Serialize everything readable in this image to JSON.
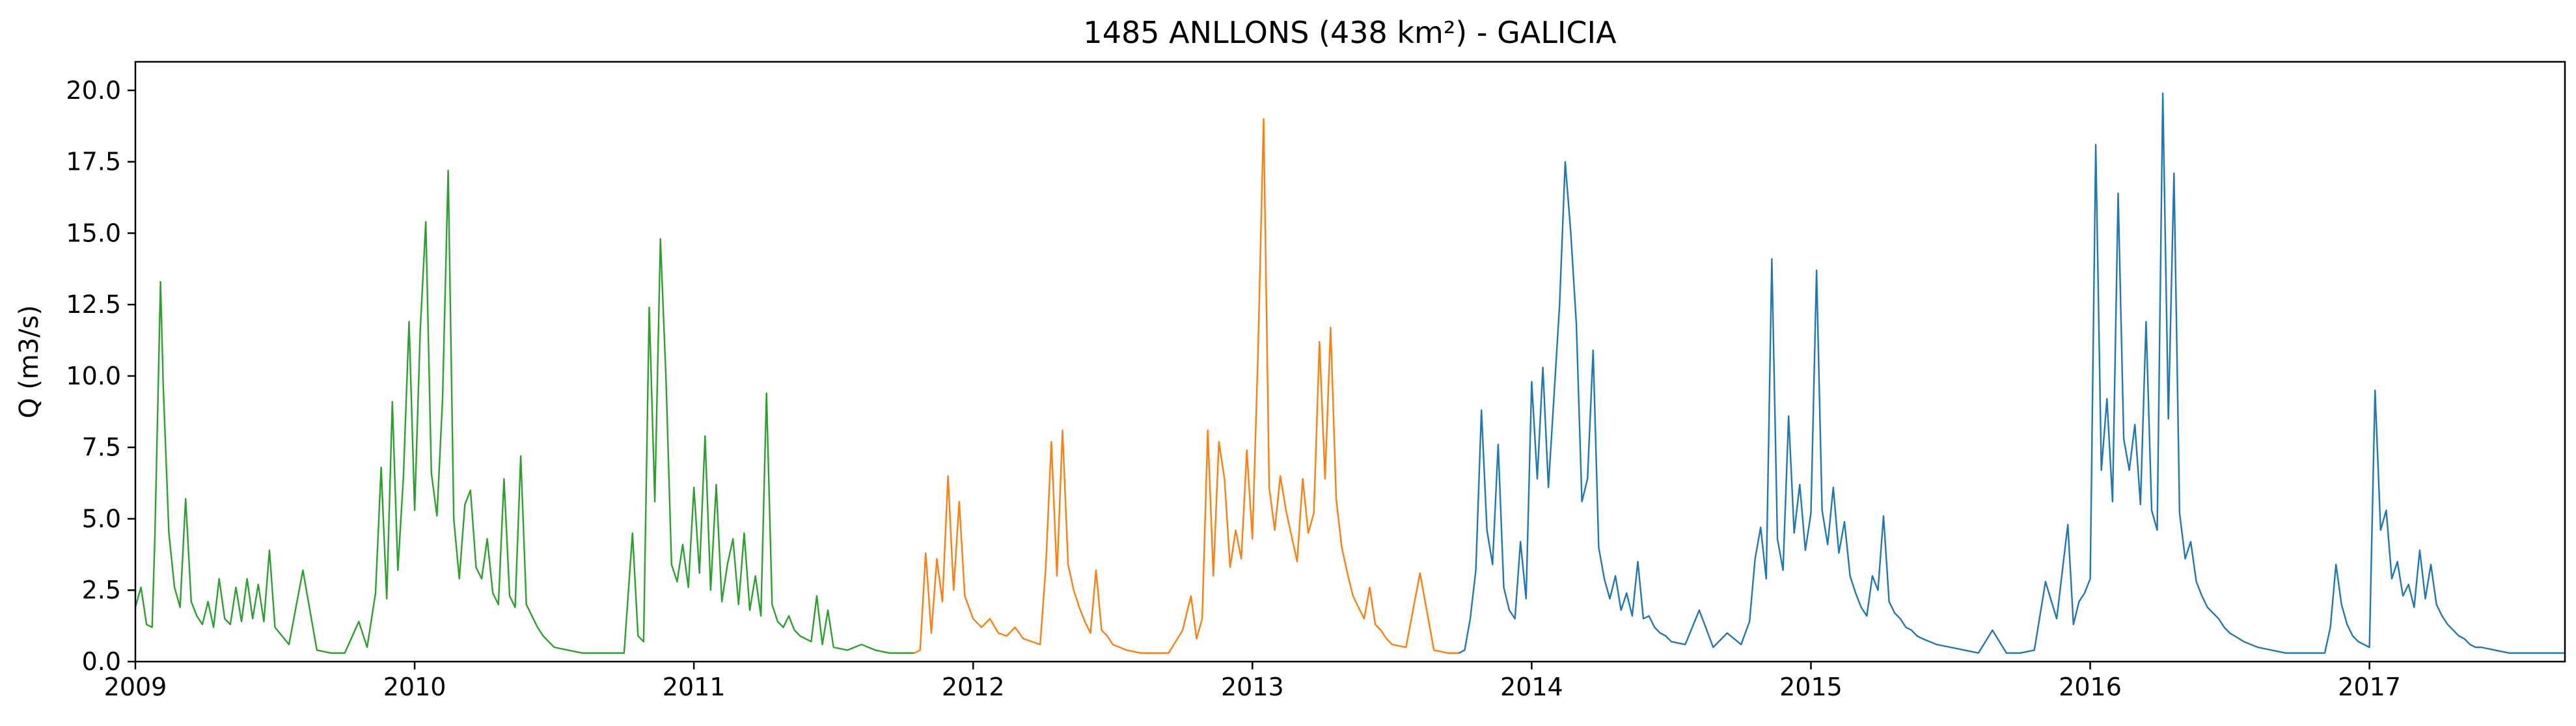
{
  "chart_data": {
    "type": "line",
    "title": "1485 ANLLONS (438 km²) - GALICIA",
    "xlabel": "",
    "ylabel": "Q (m3/s)",
    "xlim": [
      2009.0,
      2017.7
    ],
    "ylim": [
      0.0,
      21.0
    ],
    "grid": false,
    "x_ticks": [
      "2009",
      "2010",
      "2011",
      "2012",
      "2013",
      "2014",
      "2015",
      "2016",
      "2017"
    ],
    "y_ticks": [
      "0.0",
      "2.5",
      "5.0",
      "7.5",
      "10.0",
      "12.5",
      "15.0",
      "17.5",
      "20.0"
    ],
    "series": [
      {
        "color": "#2ca02c",
        "x": [
          2009.0,
          2009.02,
          2009.04,
          2009.06,
          2009.07,
          2009.08,
          2009.09,
          2009.1,
          2009.12,
          2009.14,
          2009.16,
          2009.18,
          2009.2,
          2009.22,
          2009.24,
          2009.26,
          2009.28,
          2009.3,
          2009.32,
          2009.34,
          2009.36,
          2009.38,
          2009.4,
          2009.42,
          2009.44,
          2009.46,
          2009.48,
          2009.5,
          2009.55,
          2009.6,
          2009.65,
          2009.7,
          2009.75,
          2009.8,
          2009.83,
          2009.86,
          2009.88,
          2009.9,
          2009.92,
          2009.94,
          2009.96,
          2009.98,
          2010.0,
          2010.02,
          2010.04,
          2010.06,
          2010.08,
          2010.1,
          2010.12,
          2010.14,
          2010.16,
          2010.18,
          2010.2,
          2010.22,
          2010.24,
          2010.26,
          2010.28,
          2010.3,
          2010.32,
          2010.34,
          2010.36,
          2010.38,
          2010.4,
          2010.42,
          2010.44,
          2010.46,
          2010.48,
          2010.5,
          2010.55,
          2010.6,
          2010.65,
          2010.7,
          2010.75,
          2010.78,
          2010.8,
          2010.82,
          2010.84,
          2010.86,
          2010.88,
          2010.9,
          2010.92,
          2010.94,
          2010.96,
          2010.98,
          2011.0,
          2011.02,
          2011.04,
          2011.06,
          2011.08,
          2011.1,
          2011.12,
          2011.14,
          2011.16,
          2011.18,
          2011.2,
          2011.22,
          2011.24,
          2011.26,
          2011.28,
          2011.3,
          2011.32,
          2011.34,
          2011.36,
          2011.38,
          2011.4,
          2011.42,
          2011.44,
          2011.46,
          2011.48,
          2011.5,
          2011.55,
          2011.6,
          2011.65,
          2011.7,
          2011.75,
          2011.79
        ],
        "y": [
          1.9,
          2.6,
          1.3,
          1.2,
          4.4,
          8.8,
          13.3,
          9.6,
          4.5,
          2.6,
          1.9,
          5.7,
          2.1,
          1.6,
          1.3,
          2.1,
          1.2,
          2.9,
          1.5,
          1.3,
          2.6,
          1.4,
          2.9,
          1.5,
          2.7,
          1.4,
          3.9,
          1.2,
          0.6,
          3.2,
          0.4,
          0.3,
          0.3,
          1.4,
          0.5,
          2.4,
          6.8,
          2.2,
          9.1,
          3.2,
          6.5,
          11.9,
          5.3,
          11.6,
          15.4,
          6.6,
          5.1,
          9.2,
          17.2,
          5.0,
          2.9,
          5.5,
          6.0,
          3.3,
          2.9,
          4.3,
          2.4,
          2.0,
          6.4,
          2.3,
          1.9,
          7.2,
          2.0,
          1.6,
          1.2,
          0.9,
          0.7,
          0.5,
          0.4,
          0.3,
          0.3,
          0.3,
          0.3,
          4.5,
          0.9,
          0.7,
          12.4,
          5.6,
          14.8,
          9.9,
          3.4,
          2.8,
          4.1,
          2.6,
          6.1,
          3.1,
          7.9,
          2.5,
          6.2,
          2.1,
          3.4,
          4.3,
          2.0,
          4.5,
          1.8,
          3.0,
          1.6,
          9.4,
          2.0,
          1.4,
          1.2,
          1.6,
          1.1,
          0.9,
          0.8,
          0.7,
          2.3,
          0.6,
          1.8,
          0.5,
          0.4,
          0.6,
          0.4,
          0.3,
          0.3,
          0.3
        ]
      },
      {
        "color": "#ff7f0e",
        "x": [
          2011.79,
          2011.81,
          2011.83,
          2011.85,
          2011.87,
          2011.89,
          2011.91,
          2011.93,
          2011.95,
          2011.97,
          2012.0,
          2012.03,
          2012.06,
          2012.09,
          2012.12,
          2012.15,
          2012.18,
          2012.21,
          2012.24,
          2012.26,
          2012.28,
          2012.3,
          2012.32,
          2012.34,
          2012.36,
          2012.38,
          2012.4,
          2012.42,
          2012.44,
          2012.46,
          2012.48,
          2012.5,
          2012.55,
          2012.6,
          2012.65,
          2012.7,
          2012.75,
          2012.78,
          2012.8,
          2012.82,
          2012.84,
          2012.86,
          2012.88,
          2012.9,
          2012.92,
          2012.94,
          2012.96,
          2012.98,
          2013.0,
          2013.02,
          2013.04,
          2013.06,
          2013.08,
          2013.1,
          2013.12,
          2013.14,
          2013.16,
          2013.18,
          2013.2,
          2013.22,
          2013.24,
          2013.26,
          2013.28,
          2013.3,
          2013.32,
          2013.34,
          2013.36,
          2013.38,
          2013.4,
          2013.42,
          2013.44,
          2013.46,
          2013.48,
          2013.5,
          2013.55,
          2013.6,
          2013.65,
          2013.7,
          2013.74
        ],
        "y": [
          0.3,
          0.4,
          3.8,
          1.0,
          3.6,
          2.1,
          6.5,
          2.5,
          5.6,
          2.3,
          1.5,
          1.2,
          1.5,
          1.0,
          0.9,
          1.2,
          0.8,
          0.7,
          0.6,
          3.3,
          7.7,
          3.0,
          8.1,
          3.4,
          2.5,
          1.9,
          1.4,
          1.0,
          3.2,
          1.1,
          0.9,
          0.6,
          0.4,
          0.3,
          0.3,
          0.3,
          1.1,
          2.3,
          0.8,
          1.5,
          8.1,
          3.0,
          7.7,
          6.4,
          3.3,
          4.6,
          3.6,
          7.4,
          4.3,
          10.8,
          19.0,
          6.1,
          4.6,
          6.5,
          5.3,
          4.4,
          3.5,
          6.4,
          4.5,
          5.2,
          11.2,
          6.4,
          11.7,
          5.7,
          4.0,
          3.1,
          2.3,
          1.9,
          1.5,
          2.6,
          1.3,
          1.1,
          0.8,
          0.6,
          0.5,
          3.1,
          0.4,
          0.3,
          0.3
        ]
      },
      {
        "color": "#1f77b4",
        "x": [
          2013.74,
          2013.76,
          2013.78,
          2013.8,
          2013.82,
          2013.84,
          2013.86,
          2013.88,
          2013.9,
          2013.92,
          2013.94,
          2013.96,
          2013.98,
          2014.0,
          2014.02,
          2014.04,
          2014.06,
          2014.08,
          2014.1,
          2014.12,
          2014.14,
          2014.16,
          2014.18,
          2014.2,
          2014.22,
          2014.24,
          2014.26,
          2014.28,
          2014.3,
          2014.32,
          2014.34,
          2014.36,
          2014.38,
          2014.4,
          2014.42,
          2014.44,
          2014.46,
          2014.48,
          2014.5,
          2014.55,
          2014.6,
          2014.65,
          2014.7,
          2014.75,
          2014.78,
          2014.8,
          2014.82,
          2014.84,
          2014.86,
          2014.88,
          2014.9,
          2014.92,
          2014.94,
          2014.96,
          2014.98,
          2015.0,
          2015.02,
          2015.04,
          2015.06,
          2015.08,
          2015.1,
          2015.12,
          2015.14,
          2015.16,
          2015.18,
          2015.2,
          2015.22,
          2015.24,
          2015.26,
          2015.28,
          2015.3,
          2015.32,
          2015.34,
          2015.36,
          2015.38,
          2015.4,
          2015.45,
          2015.5,
          2015.55,
          2015.6,
          2015.65,
          2015.7,
          2015.75,
          2015.8,
          2015.84,
          2015.88,
          2015.92,
          2015.94,
          2015.96,
          2015.98,
          2016.0,
          2016.02,
          2016.04,
          2016.06,
          2016.08,
          2016.1,
          2016.12,
          2016.14,
          2016.16,
          2016.18,
          2016.2,
          2016.22,
          2016.24,
          2016.26,
          2016.28,
          2016.3,
          2016.32,
          2016.34,
          2016.36,
          2016.38,
          2016.4,
          2016.42,
          2016.44,
          2016.46,
          2016.48,
          2016.5,
          2016.55,
          2016.6,
          2016.65,
          2016.7,
          2016.75,
          2016.8,
          2016.84,
          2016.86,
          2016.88,
          2016.9,
          2016.92,
          2016.94,
          2016.96,
          2016.98,
          2017.0,
          2017.02,
          2017.04,
          2017.06,
          2017.08,
          2017.1,
          2017.12,
          2017.14,
          2017.16,
          2017.18,
          2017.2,
          2017.22,
          2017.24,
          2017.26,
          2017.28,
          2017.3,
          2017.32,
          2017.34,
          2017.36,
          2017.38,
          2017.4,
          2017.45,
          2017.5,
          2017.55,
          2017.6,
          2017.65,
          2017.7
        ],
        "y": [
          0.3,
          0.4,
          1.5,
          3.2,
          8.8,
          4.6,
          3.4,
          7.6,
          2.6,
          1.8,
          1.5,
          4.2,
          2.2,
          9.8,
          6.4,
          10.3,
          6.1,
          9.3,
          12.5,
          17.5,
          15.0,
          11.8,
          5.6,
          6.4,
          10.9,
          4.0,
          2.9,
          2.2,
          3.0,
          1.8,
          2.4,
          1.6,
          3.5,
          1.5,
          1.6,
          1.2,
          1.0,
          0.9,
          0.7,
          0.6,
          1.8,
          0.5,
          1.0,
          0.6,
          1.4,
          3.6,
          4.7,
          2.9,
          14.1,
          4.3,
          3.2,
          8.6,
          4.5,
          6.2,
          3.9,
          5.2,
          13.7,
          5.3,
          4.1,
          6.1,
          3.8,
          4.9,
          3.0,
          2.4,
          1.9,
          1.6,
          3.0,
          2.5,
          5.1,
          2.1,
          1.7,
          1.5,
          1.2,
          1.1,
          0.9,
          0.8,
          0.6,
          0.5,
          0.4,
          0.3,
          1.1,
          0.3,
          0.3,
          0.4,
          2.8,
          1.5,
          4.8,
          1.3,
          2.1,
          2.4,
          2.9,
          18.1,
          6.7,
          9.2,
          5.6,
          16.4,
          7.8,
          6.7,
          8.3,
          5.5,
          11.9,
          5.3,
          4.6,
          19.9,
          8.5,
          17.1,
          5.2,
          3.6,
          4.2,
          2.8,
          2.3,
          1.9,
          1.7,
          1.5,
          1.2,
          1.0,
          0.7,
          0.5,
          0.4,
          0.3,
          0.3,
          0.3,
          0.3,
          1.2,
          3.4,
          2.0,
          1.3,
          0.9,
          0.7,
          0.6,
          0.5,
          9.5,
          4.6,
          5.3,
          2.9,
          3.5,
          2.3,
          2.7,
          1.9,
          3.9,
          2.2,
          3.4,
          2.0,
          1.6,
          1.3,
          1.1,
          0.9,
          0.8,
          0.6,
          0.5,
          0.5,
          0.4,
          0.3,
          0.3,
          0.3,
          0.3,
          0.3
        ]
      }
    ]
  }
}
